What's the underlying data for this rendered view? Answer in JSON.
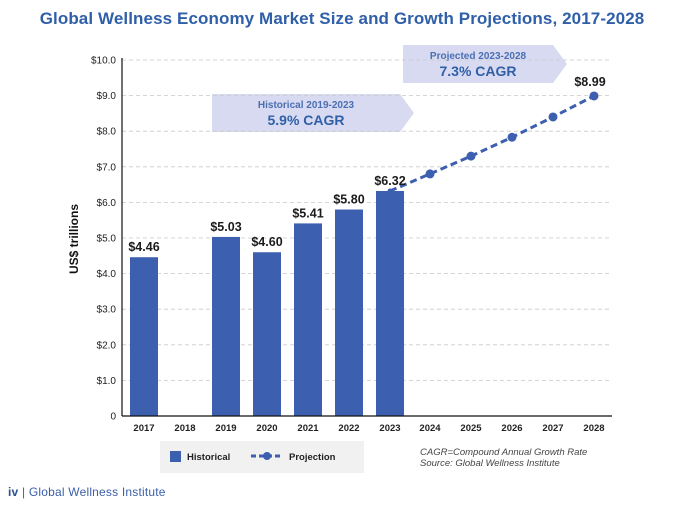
{
  "chart_data": {
    "type": "bar",
    "title": "Global Wellness Economy Market Size and Growth Projections, 2017-2028",
    "ylabel": "US$ trillions",
    "ylim": [
      0,
      10
    ],
    "yticks": [
      0,
      1,
      2,
      3,
      4,
      5,
      6,
      7,
      8,
      9,
      10
    ],
    "ytick_labels": [
      "0",
      "$1.0",
      "$2.0",
      "$3.0",
      "$4.0",
      "$5.0",
      "$6.0",
      "$7.0",
      "$8.0",
      "$9.0",
      "$10.0"
    ],
    "grid": "horizontal dashed",
    "categories": [
      "2017",
      "2018",
      "2019",
      "2020",
      "2021",
      "2022",
      "2023",
      "2024",
      "2025",
      "2026",
      "2027",
      "2028"
    ],
    "series": [
      {
        "name": "Historical",
        "type": "bar",
        "color": "#3d5faf",
        "points": [
          {
            "category": "2017",
            "value": 4.46,
            "label": "$4.46"
          },
          {
            "category": "2019",
            "value": 5.03,
            "label": "$5.03"
          },
          {
            "category": "2020",
            "value": 4.6,
            "label": "$4.60"
          },
          {
            "category": "2021",
            "value": 5.41,
            "label": "$5.41"
          },
          {
            "category": "2022",
            "value": 5.8,
            "label": "$5.80"
          },
          {
            "category": "2023",
            "value": 6.32,
            "label": "$6.32"
          }
        ]
      },
      {
        "name": "Projection",
        "type": "line",
        "style": "dashed",
        "color": "#3d5faf",
        "points": [
          {
            "category": "2023",
            "value": 6.32
          },
          {
            "category": "2024",
            "value": 6.8
          },
          {
            "category": "2025",
            "value": 7.3
          },
          {
            "category": "2026",
            "value": 7.83
          },
          {
            "category": "2027",
            "value": 8.4
          },
          {
            "category": "2028",
            "value": 8.99,
            "label": "$8.99"
          }
        ]
      }
    ],
    "annotations": [
      {
        "name": "historical-cagr",
        "line1": "Historical 2019-2023",
        "line2": "5.9% CAGR",
        "span": [
          "2018",
          "2023"
        ]
      },
      {
        "name": "projected-cagr",
        "line1": "Projected 2023-2028",
        "line2": "7.3% CAGR",
        "span": [
          "2024",
          "2027"
        ]
      }
    ],
    "legend": {
      "position": "bottom-left",
      "items": [
        {
          "label": "Historical",
          "kind": "bar"
        },
        {
          "label": "Projection",
          "kind": "dashed-line"
        }
      ]
    },
    "notes": [
      "CAGR=Compound Annual Growth Rate",
      "Source: Global Wellness Institute"
    ]
  },
  "footer": {
    "logo": "iv",
    "separator": "|",
    "org": "Global Wellness Institute"
  },
  "colors": {
    "bar": "#3d5faf",
    "banner": "#d7daf0",
    "title": "#2f5fa8"
  }
}
